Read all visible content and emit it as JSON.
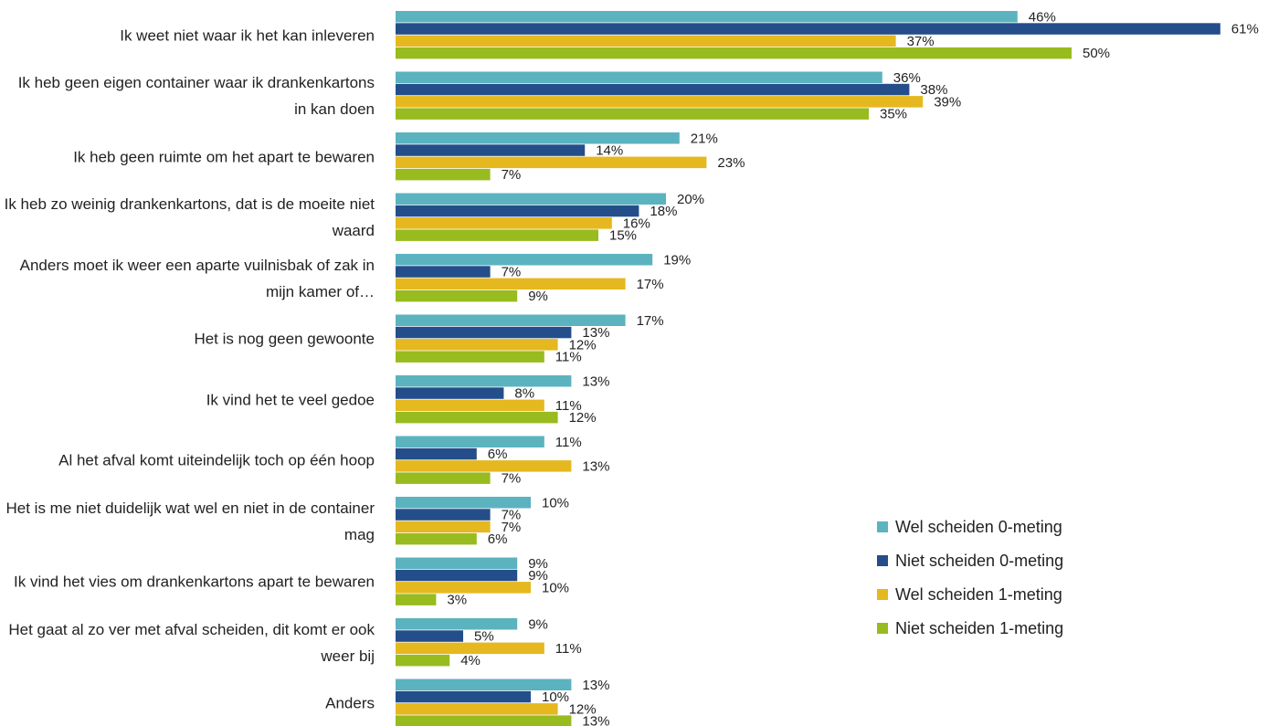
{
  "chart_data": {
    "type": "bar",
    "orientation": "horizontal",
    "categories": [
      "Ik weet niet waar ik het kan inleveren",
      "Ik heb geen eigen container waar ik drankenkartons in kan doen",
      "Ik heb geen ruimte om het apart te bewaren",
      "Ik heb zo weinig drankenkartons, dat is de moeite niet waard",
      "Anders moet ik weer een aparte vuilnisbak of zak in mijn kamer of…",
      "Het is nog geen gewoonte",
      "Ik vind het te veel gedoe",
      "Al het afval komt uiteindelijk toch op één hoop",
      "Het is me niet duidelijk wat wel en niet in de container mag",
      "Ik vind het vies om drankenkartons apart te bewaren",
      "Het gaat al zo ver met afval scheiden, dit komt er ook weer bij",
      "Anders"
    ],
    "series": [
      {
        "name": "Wel scheiden 0-meting",
        "color": "#5bb3bf",
        "values": [
          46,
          36,
          21,
          20,
          19,
          17,
          13,
          11,
          10,
          9,
          9,
          13
        ],
        "value_labels": [
          "46%",
          "36%",
          "21%",
          "20%",
          "19%",
          "17%",
          "13%",
          "11%",
          "10%",
          "9%",
          "9%",
          "13%"
        ]
      },
      {
        "name": "Niet scheiden 0-meting",
        "color": "#244e8a",
        "values": [
          61,
          38,
          14,
          18,
          7,
          13,
          8,
          6,
          7,
          9,
          5,
          10
        ],
        "value_labels": [
          "61%",
          "38%",
          "14%",
          "18%",
          "7%",
          "13%",
          "8%",
          "6%",
          "7%",
          "9%",
          "5%",
          "10%"
        ]
      },
      {
        "name": "Wel scheiden 1-meting",
        "color": "#e5b81f",
        "values": [
          37,
          39,
          23,
          16,
          17,
          12,
          11,
          13,
          7,
          10,
          11,
          12
        ],
        "value_labels": [
          "37%",
          "39%",
          "23%",
          "16%",
          "17%",
          "12%",
          "11%",
          "13%",
          "7%",
          "10%",
          "11%",
          "12%"
        ]
      },
      {
        "name": "Niet scheiden 1-meting",
        "color": "#98bb1f",
        "values": [
          50,
          35,
          7,
          15,
          9,
          11,
          12,
          7,
          6,
          3,
          4,
          13
        ],
        "value_labels": [
          "50%",
          "35%",
          "7%",
          "15%",
          "9%",
          "11%",
          "12%",
          "7%",
          "6%",
          "3%",
          "4%",
          "13%"
        ]
      }
    ]
  }
}
